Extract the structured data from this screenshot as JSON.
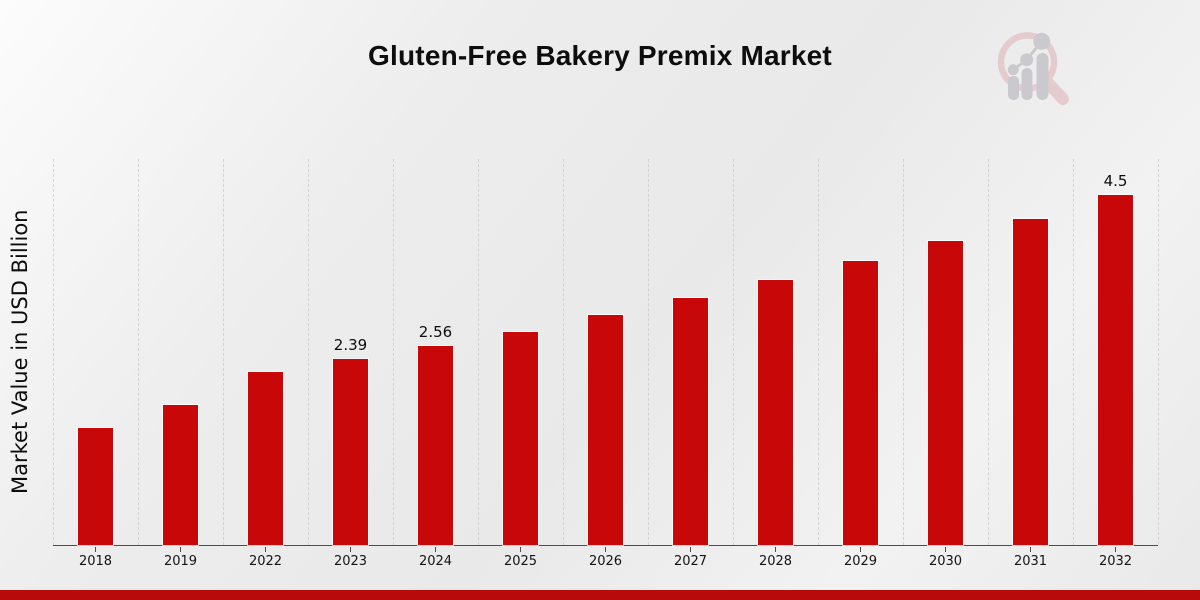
{
  "header": {
    "title": "Gluten-Free Bakery Premix Market"
  },
  "branding": {
    "logo_icon": "market-research-future-magnifier-bar-chart-logo",
    "logo_ring_color": "#e3c6c8",
    "logo_bar_color": "#c5c5c9"
  },
  "chart_data": {
    "type": "bar",
    "title": "Gluten-Free Bakery Premix Market",
    "xlabel": "",
    "ylabel": "Market Value in USD Billion",
    "categories": [
      "2018",
      "2019",
      "2022",
      "2023",
      "2024",
      "2025",
      "2026",
      "2027",
      "2028",
      "2029",
      "2030",
      "2031",
      "2032"
    ],
    "values": [
      1.5,
      1.8,
      2.22,
      2.39,
      2.56,
      2.74,
      2.96,
      3.17,
      3.4,
      3.65,
      3.91,
      4.19,
      4.5
    ],
    "value_labels": [
      "",
      "",
      "",
      "2.39",
      "2.56",
      "",
      "",
      "",
      "",
      "",
      "",
      "",
      "4.5"
    ],
    "units": "USD Billion",
    "bar_color": "#c80808",
    "footer_bar_color": "#b80a0a",
    "ylim": [
      0,
      4.96
    ],
    "grid": "vertical-dashed",
    "legend": "none",
    "y_axis_ticks": "none"
  }
}
